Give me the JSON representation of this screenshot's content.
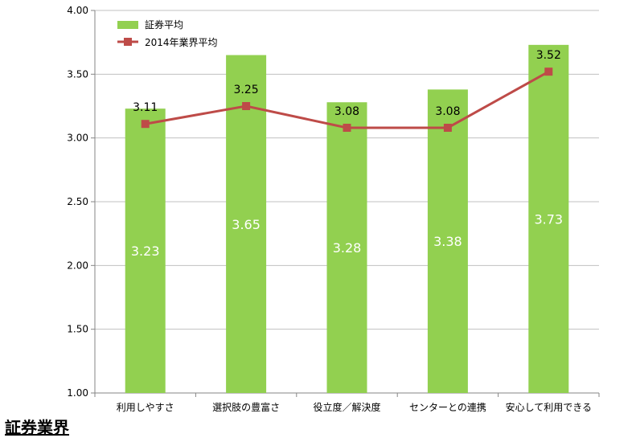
{
  "page_title": "証券業界",
  "colors": {
    "bar": "#92d050",
    "line": "#be4b48",
    "grid": "#c0c0c0",
    "axis": "#868686"
  },
  "chart_data": {
    "type": "bar",
    "categories": [
      "利用しやすさ",
      "選択肢の豊富さ",
      "役立度／解決度",
      "センターとの連携",
      "安心して利用できる"
    ],
    "series": [
      {
        "name": "証券平均",
        "type": "bar",
        "values": [
          3.23,
          3.65,
          3.28,
          3.38,
          3.73
        ],
        "labels": [
          "3.23",
          "3.65",
          "3.28",
          "3.38",
          "3.73"
        ]
      },
      {
        "name": "2014年業界平均",
        "type": "line",
        "values": [
          3.11,
          3.25,
          3.08,
          3.08,
          3.52
        ],
        "labels": [
          "3.11",
          "3.25",
          "3.08",
          "3.08",
          "3.52"
        ]
      }
    ],
    "ylim": [
      1.0,
      4.0
    ],
    "yticks": [
      "1.00",
      "1.50",
      "2.00",
      "2.50",
      "3.00",
      "3.50",
      "4.00"
    ],
    "grid": true,
    "legend": "top-left"
  }
}
